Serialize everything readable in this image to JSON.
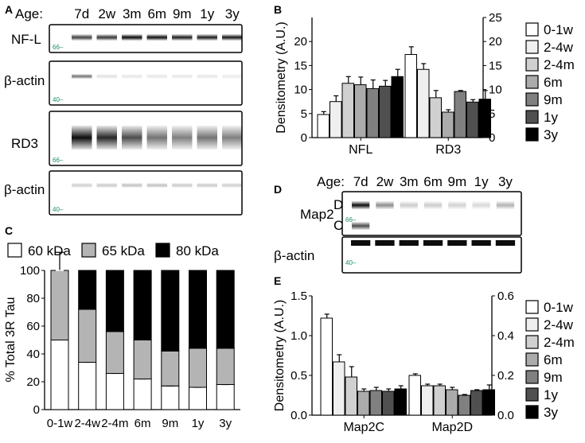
{
  "panel_letters": {
    "a": "A",
    "b": "B",
    "c": "C",
    "d": "D",
    "e": "E"
  },
  "blot_a": {
    "age_prefix": "Age:",
    "ages": [
      "7d",
      "2w",
      "3m",
      "6m",
      "9m",
      "1y",
      "3y"
    ],
    "rows": [
      {
        "label": "NF-L",
        "marker": "66",
        "intensity": [
          0.75,
          0.8,
          0.98,
          0.95,
          0.9,
          0.9,
          0.92
        ]
      },
      {
        "label": "β-actin",
        "marker": "40",
        "intensity": [
          0.55,
          0.12,
          0.1,
          0.1,
          0.1,
          0.1,
          0.08
        ]
      },
      {
        "label": "RD3",
        "marker": "66",
        "intensity": [
          0.95,
          0.85,
          0.7,
          0.55,
          0.5,
          0.55,
          0.5
        ]
      },
      {
        "label": "β-actin",
        "marker": "40",
        "intensity": [
          0.2,
          0.22,
          0.25,
          0.25,
          0.22,
          0.22,
          0.2
        ]
      }
    ]
  },
  "blot_d": {
    "age_prefix": "Age:",
    "ages": [
      "7d",
      "2w",
      "3m",
      "6m",
      "9m",
      "1y",
      "3y"
    ],
    "row_label": "Map2",
    "band_d": "D",
    "band_c": "C",
    "actin_label": "β-actin",
    "marker_top": "66",
    "marker_bottom": "40",
    "intensity": [
      0.95,
      0.45,
      0.2,
      0.2,
      0.18,
      0.15,
      0.3
    ]
  },
  "legend_groups": [
    "0-1w",
    "2-4w",
    "2-4m",
    "6m",
    "9m",
    "1y",
    "3y"
  ],
  "colors": [
    "#ffffff",
    "#efefef",
    "#d0d0d0",
    "#ababab",
    "#808080",
    "#505050",
    "#000000"
  ],
  "chart_data": [
    {
      "panel": "B",
      "type": "bar",
      "ylabel": "Densitometry (A.U.)",
      "categories": [
        "NFL",
        "RD3"
      ],
      "left_axis": {
        "ylim": [
          0,
          25
        ],
        "ticks": [
          "0",
          "5",
          "10",
          "15",
          "20"
        ]
      },
      "right_axis": {
        "ylim": [
          0,
          25
        ],
        "ticks": [
          "0",
          "5",
          "10",
          "15",
          "20",
          "25"
        ]
      },
      "series": [
        {
          "name": "0-1w",
          "values": [
            4.8,
            17.3
          ],
          "errors": [
            0.6,
            1.6
          ]
        },
        {
          "name": "2-4w",
          "values": [
            7.5,
            14.2
          ],
          "errors": [
            1.2,
            1.2
          ]
        },
        {
          "name": "2-4m",
          "values": [
            11.3,
            8.3
          ],
          "errors": [
            1.4,
            1.5
          ]
        },
        {
          "name": "6m",
          "values": [
            11.0,
            5.3
          ],
          "errors": [
            1.6,
            0.5
          ]
        },
        {
          "name": "9m",
          "values": [
            10.2,
            9.6
          ],
          "errors": [
            1.8,
            0.2
          ]
        },
        {
          "name": "1y",
          "values": [
            10.7,
            7.4
          ],
          "errors": [
            1.2,
            0.5
          ]
        },
        {
          "name": "3y",
          "values": [
            12.7,
            8.0
          ],
          "errors": [
            1.5,
            1.8
          ]
        }
      ]
    },
    {
      "panel": "C",
      "type": "bar",
      "stacked": true,
      "ylabel": "% Total 3R Tau",
      "ylim": [
        0,
        100
      ],
      "yticks": [
        "0",
        "20",
        "40",
        "60",
        "80",
        "100"
      ],
      "categories": [
        "0-1w",
        "2-4w",
        "2-4m",
        "6m",
        "9m",
        "1y",
        "3y"
      ],
      "legend": [
        {
          "label": "60 kDa",
          "color": "#ffffff"
        },
        {
          "label": "65 kDa",
          "color": "#b4b4b4"
        },
        {
          "label": "80 kDa",
          "color": "#000000"
        }
      ],
      "series": [
        {
          "name": "60 kDa",
          "values": [
            50,
            34,
            26,
            22,
            17,
            16,
            18
          ],
          "errors": [
            0,
            1.5,
            1,
            1,
            1,
            0.5,
            0.5
          ]
        },
        {
          "name": "65 kDa",
          "values": [
            50,
            38,
            30,
            28,
            25,
            28,
            26
          ],
          "errors": [
            13,
            2,
            2.5,
            2,
            2,
            1.5,
            2
          ]
        },
        {
          "name": "80 kDa",
          "values": [
            0,
            28,
            44,
            50,
            58,
            56,
            56
          ],
          "errors": [
            0,
            0,
            0,
            0,
            0,
            0,
            0
          ]
        }
      ]
    },
    {
      "panel": "E",
      "type": "bar",
      "ylabel": "Densitometry (A.U.)",
      "categories": [
        "Map2C",
        "Map2D"
      ],
      "left_axis": {
        "ylim": [
          0,
          1.5
        ],
        "ticks": [
          "0.0",
          "0.5",
          "1.0",
          "1.5"
        ]
      },
      "right_axis": {
        "ylim": [
          0,
          0.6
        ],
        "ticks": [
          "0.0",
          "0.2",
          "0.4",
          "0.6"
        ]
      },
      "series": [
        {
          "name": "0-1w",
          "values": [
            1.22,
            0.5
          ],
          "errors": [
            0.05,
            0.02
          ]
        },
        {
          "name": "2-4w",
          "values": [
            0.67,
            0.37
          ],
          "errors": [
            0.09,
            0.02
          ]
        },
        {
          "name": "2-4m",
          "values": [
            0.48,
            0.37
          ],
          "errors": [
            0.13,
            0.02
          ]
        },
        {
          "name": "6m",
          "values": [
            0.3,
            0.32
          ],
          "errors": [
            0.03,
            0.03
          ]
        },
        {
          "name": "9m",
          "values": [
            0.31,
            0.25
          ],
          "errors": [
            0.04,
            0.01
          ]
        },
        {
          "name": "1y",
          "values": [
            0.3,
            0.31
          ],
          "errors": [
            0.03,
            0.01
          ]
        },
        {
          "name": "3y",
          "values": [
            0.33,
            0.32
          ],
          "errors": [
            0.04,
            0.06
          ]
        }
      ]
    }
  ]
}
